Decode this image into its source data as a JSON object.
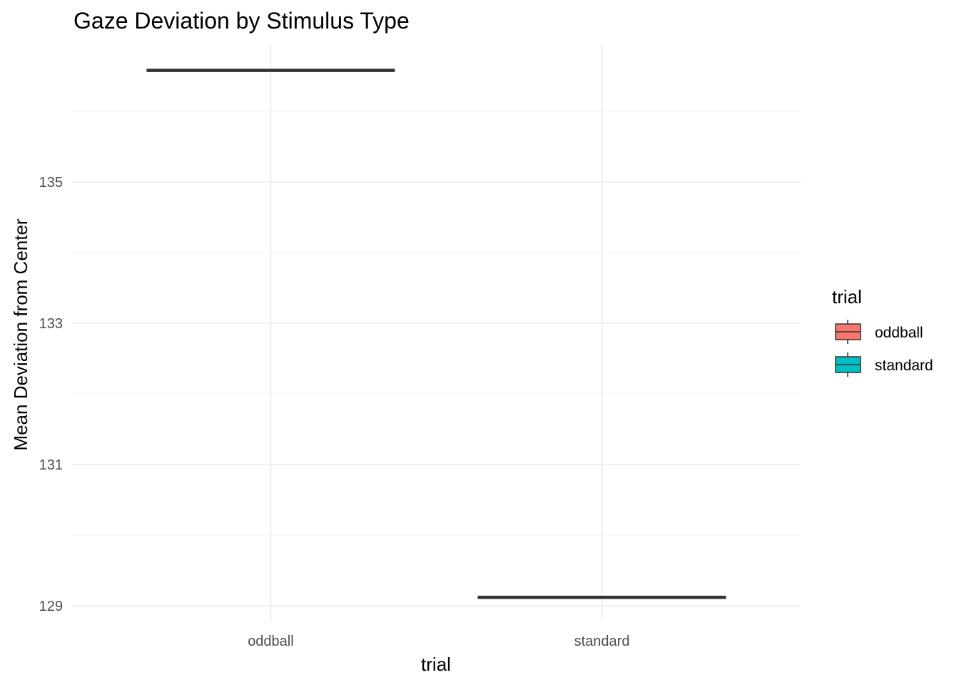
{
  "chart_data": {
    "type": "boxplot",
    "title": "Gaze Deviation by Stimulus Type",
    "xlabel": "trial",
    "ylabel": "Mean Deviation from Center",
    "categories": [
      "oddball",
      "standard"
    ],
    "series": [
      {
        "name": "oddball",
        "median": 136.58,
        "color": "#F8766D"
      },
      {
        "name": "standard",
        "median": 129.12,
        "color": "#00BFC4"
      }
    ],
    "ylim": [
      128.8,
      136.9
    ],
    "yticks": [
      129,
      131,
      133,
      135
    ],
    "yticks_minor": [
      130,
      132,
      134,
      136
    ],
    "grid": true,
    "legend": {
      "title": "trial",
      "position": "right",
      "items": [
        "oddball",
        "standard"
      ]
    }
  }
}
